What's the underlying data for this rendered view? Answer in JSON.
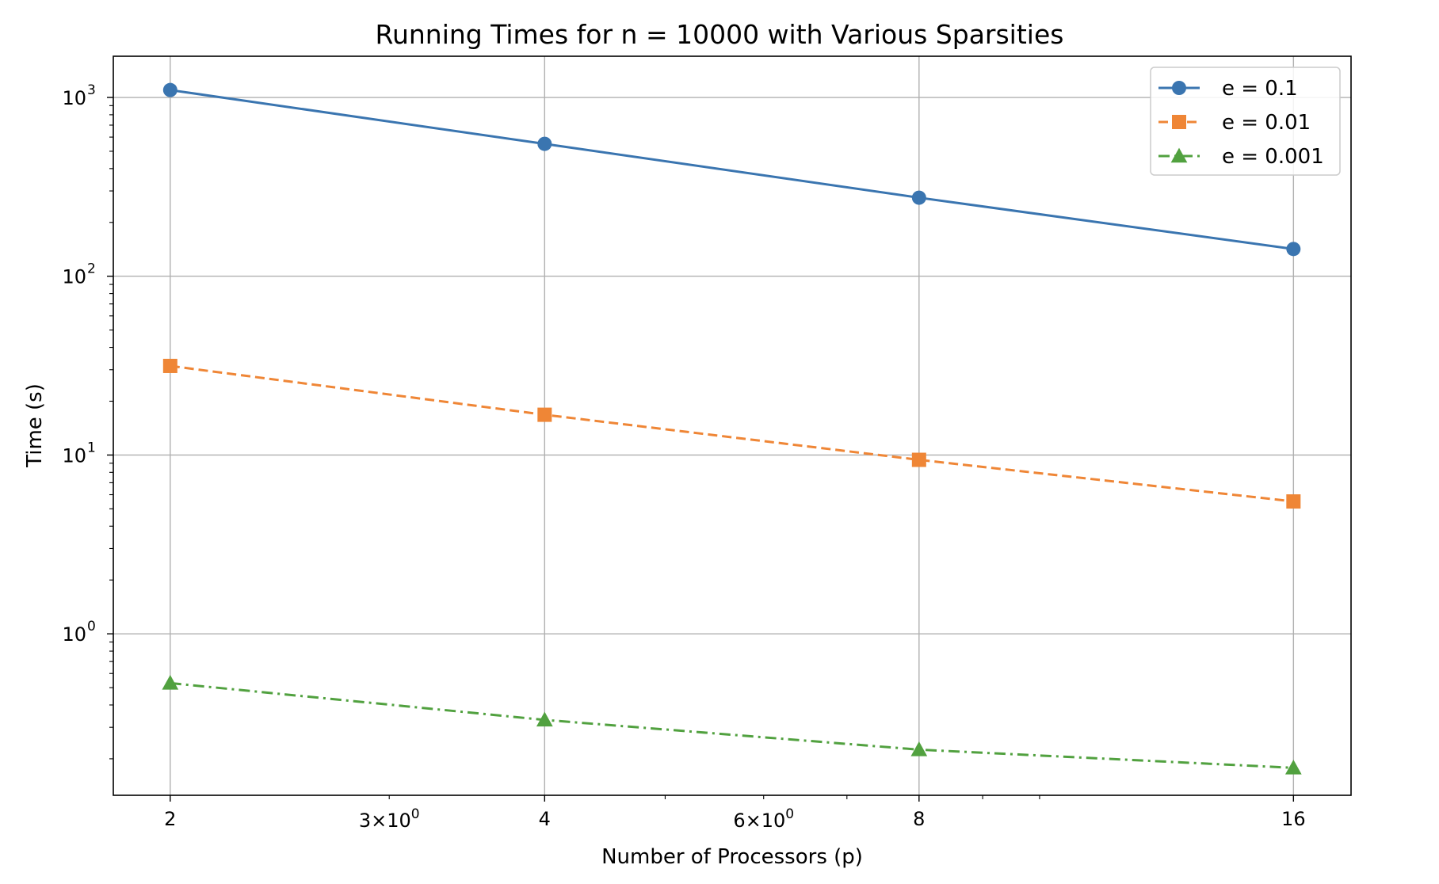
{
  "chart_data": {
    "type": "line",
    "title": "Running Times for n = 10000 with Various Sparsities",
    "xlabel": "Number of Processors (p)",
    "ylabel": "Time (s)",
    "x_scale": "log",
    "y_scale": "log",
    "x": [
      2,
      4,
      8,
      16
    ],
    "xlim": [
      1.8,
      17.8
    ],
    "ylim": [
      0.125,
      1700
    ],
    "x_ticks": [
      {
        "value": 2,
        "label": "2"
      },
      {
        "value": 4,
        "label": "4"
      },
      {
        "value": 8,
        "label": "8"
      },
      {
        "value": 16,
        "label": "16"
      }
    ],
    "x_minor_ticks": [
      {
        "value": 3,
        "label_base": "3×10",
        "label_exp": "0"
      },
      {
        "value": 5
      },
      {
        "value": 6,
        "label_base": "6×10",
        "label_exp": "0"
      },
      {
        "value": 7
      },
      {
        "value": 9
      },
      {
        "value": 10
      }
    ],
    "y_ticks": [
      {
        "value": 1,
        "base": "10",
        "exp": "0"
      },
      {
        "value": 10,
        "base": "10",
        "exp": "1"
      },
      {
        "value": 100,
        "base": "10",
        "exp": "2"
      },
      {
        "value": 1000,
        "base": "10",
        "exp": "3"
      }
    ],
    "grid": true,
    "legend_position": "top-right",
    "series": [
      {
        "name": "e = 0.1",
        "values": [
          1100,
          550,
          275,
          142
        ],
        "color": "#3a75b0",
        "linestyle": "solid",
        "marker": "circle"
      },
      {
        "name": "e = 0.01",
        "values": [
          31.5,
          16.8,
          9.4,
          5.5
        ],
        "color": "#ef8636",
        "linestyle": "dashed",
        "marker": "square"
      },
      {
        "name": "e = 0.001",
        "values": [
          0.53,
          0.33,
          0.225,
          0.178
        ],
        "color": "#51a13f",
        "linestyle": "dashdot",
        "marker": "triangle"
      }
    ]
  }
}
